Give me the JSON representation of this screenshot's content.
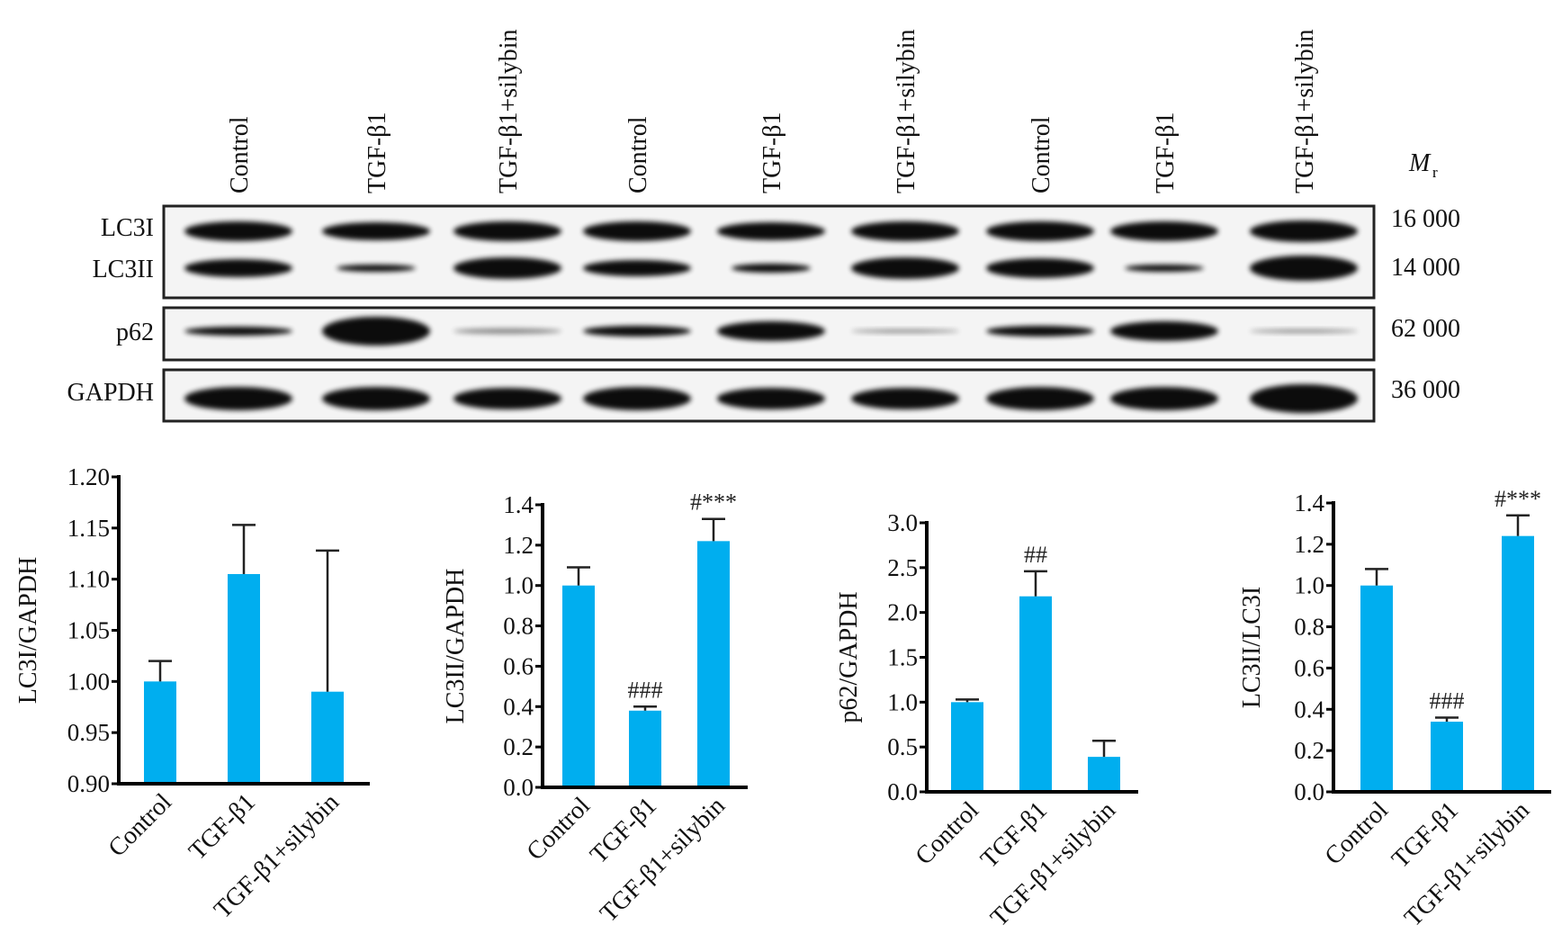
{
  "blot": {
    "lanes": [
      "Control",
      "TGF-β1",
      "TGF-β1+silybin",
      "Control",
      "TGF-β1",
      "TGF-β1+silybin",
      "Control",
      "TGF-β1",
      "TGF-β1+silybin"
    ],
    "rows": [
      "LC3I",
      "LC3II",
      "p62",
      "GAPDH"
    ],
    "mr_label": "M",
    "mr_sub": "r",
    "mr_values": [
      "16 000",
      "14 000",
      "62 000",
      "36 000"
    ]
  },
  "colors": {
    "bar": "#00aeef",
    "error": "#222222",
    "band": "#000000"
  },
  "chart_data": [
    {
      "type": "bar",
      "categories": [
        "Control",
        "TGF-β1",
        "TGF-β1+silybin"
      ],
      "values": [
        1.0,
        1.105,
        0.99
      ],
      "error_upper": [
        1.02,
        1.153,
        1.128
      ],
      "annotations": [
        "",
        "",
        ""
      ],
      "ylabel": "LC3I/GAPDH",
      "ylim": [
        0.9,
        1.2
      ],
      "yticks": [
        "0.90",
        "0.95",
        "1.00",
        "1.05",
        "1.10",
        "1.15",
        "1.20"
      ],
      "grid": false
    },
    {
      "type": "bar",
      "categories": [
        "Control",
        "TGF-β1",
        "TGF-β1+silybin"
      ],
      "values": [
        1.0,
        0.38,
        1.22
      ],
      "error_upper": [
        1.09,
        0.4,
        1.33
      ],
      "annotations": [
        "",
        "###",
        "#***"
      ],
      "ylabel": "LC3II/GAPDH",
      "ylim": [
        0,
        1.4
      ],
      "yticks": [
        "0.0",
        "0.2",
        "0.4",
        "0.6",
        "0.8",
        "1.0",
        "1.2",
        "1.4"
      ],
      "grid": false
    },
    {
      "type": "bar",
      "categories": [
        "Control",
        "TGF-β1",
        "TGF-β1+silybin"
      ],
      "values": [
        1.0,
        2.18,
        0.39
      ],
      "error_upper": [
        1.03,
        2.46,
        0.57
      ],
      "annotations": [
        "",
        "##",
        ""
      ],
      "ylabel": "p62/GAPDH",
      "ylim": [
        0,
        3.0
      ],
      "yticks": [
        "0.0",
        "0.5",
        "1.0",
        "1.5",
        "2.0",
        "2.5",
        "3.0"
      ],
      "grid": false
    },
    {
      "type": "bar",
      "categories": [
        "Control",
        "TGF-β1",
        "TGF-β1+silybin"
      ],
      "values": [
        1.0,
        0.34,
        1.24
      ],
      "error_upper": [
        1.08,
        0.36,
        1.34
      ],
      "annotations": [
        "",
        "###",
        "#***"
      ],
      "ylabel": "LC3II/LC3I",
      "ylim": [
        0,
        1.4
      ],
      "yticks": [
        "0.0",
        "0.2",
        "0.4",
        "0.6",
        "0.8",
        "1.0",
        "1.2",
        "1.4"
      ],
      "grid": false
    }
  ]
}
